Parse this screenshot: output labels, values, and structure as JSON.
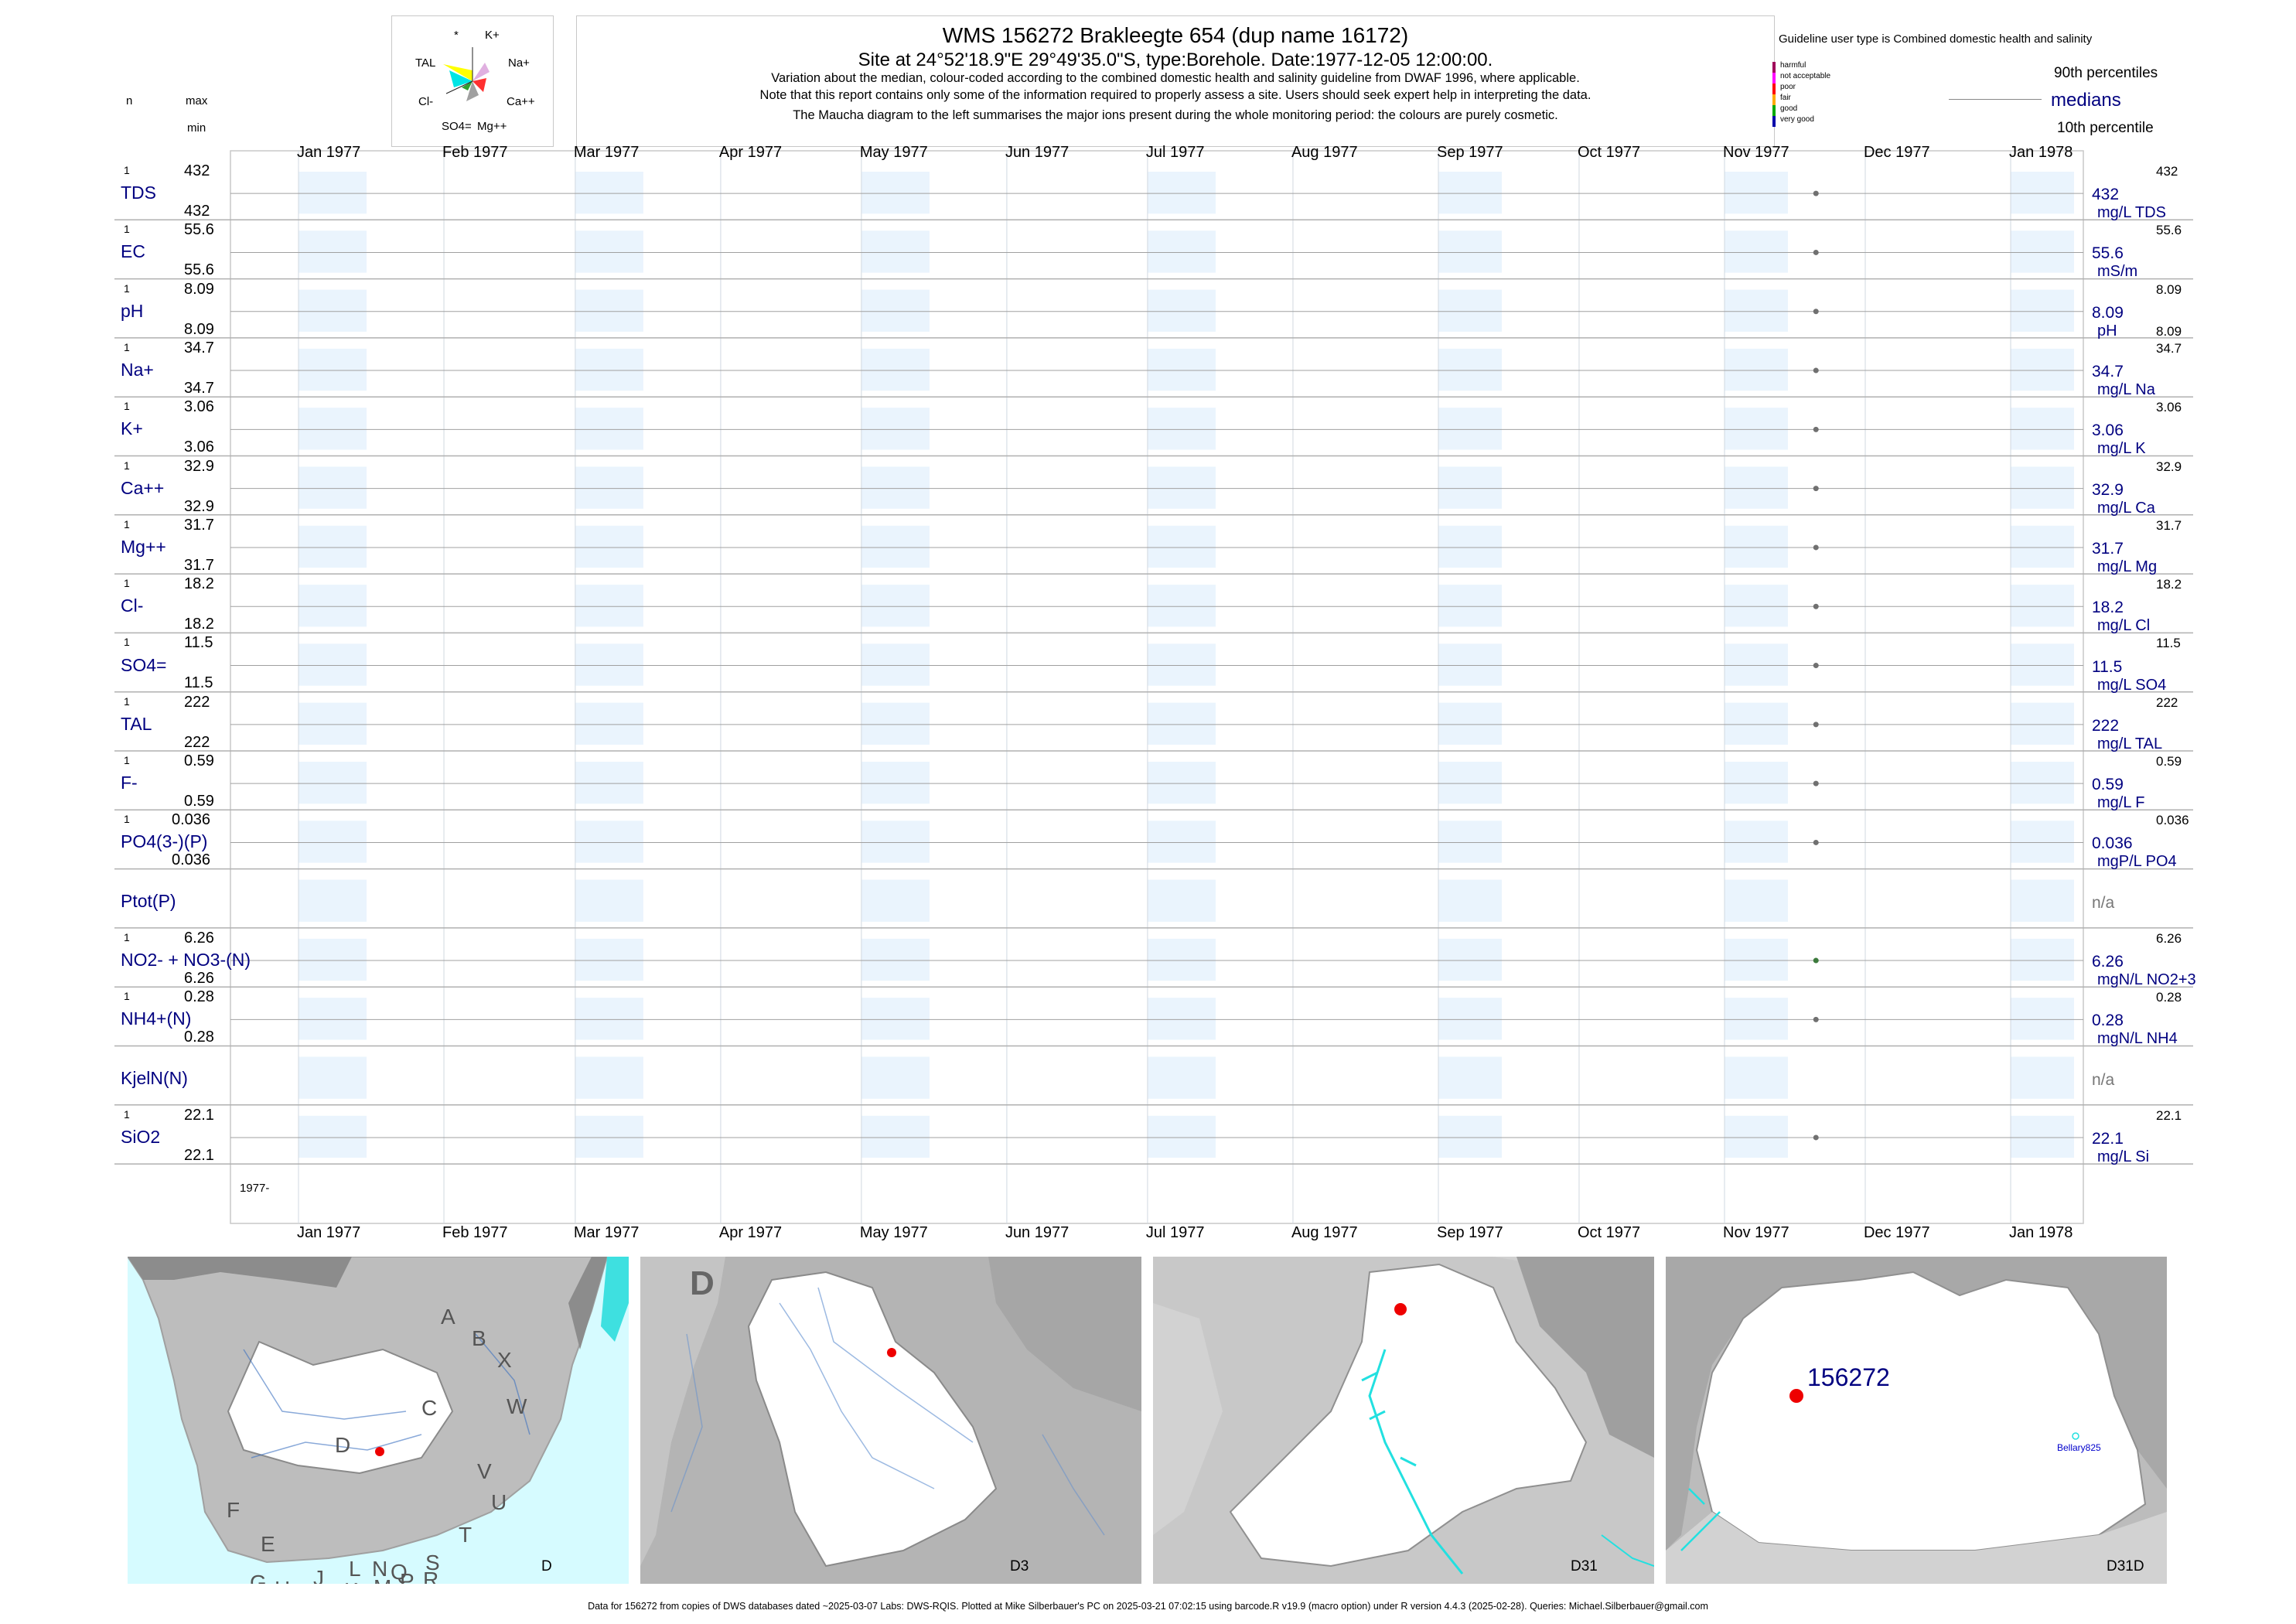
{
  "header": {
    "title": "WMS 156272  Brakleegte 654 (dup name 16172)",
    "site": "Site at 24°52'18.9\"E 29°49'35.0\"S, type:Borehole. Date:1977-12-05 12:00:00.",
    "note1": "Variation about the median,  colour-coded according to the combined domestic health and salinity guideline from DWAF 1996, where applicable.",
    "note2": "Note that this report contains only some of the information required to properly assess a site. Users should seek expert help in interpreting the data.",
    "note3": "The Maucha diagram to the left summarises the major ions present during the whole monitoring period: the colours are purely cosmetic."
  },
  "maucha": {
    "labels": [
      "*",
      "K+",
      "TAL",
      "Na+",
      "Cl-",
      "Ca++",
      "SO4=",
      "Mg++"
    ]
  },
  "legend": {
    "guideline_title": "Guideline user type is Combined domestic health and salinity",
    "categories": [
      "harmful",
      "not acceptable",
      "poor",
      "fair",
      "good",
      "very good"
    ],
    "category_colors": [
      "#a0005a",
      "#ff00ff",
      "#ff0000",
      "#ffaa00",
      "#00aa00",
      "#0000aa"
    ],
    "p90": "90th percentiles",
    "medians": "medians",
    "p10": "10th percentile"
  },
  "columns": {
    "n": "n",
    "max": "max",
    "min": "min"
  },
  "months": [
    "Jan 1977",
    "Feb 1977",
    "Mar 1977",
    "Apr 1977",
    "May 1977",
    "Jun 1977",
    "Jul 1977",
    "Aug 1977",
    "Sep 1977",
    "Oct 1977",
    "Nov 1977",
    "Dec 1977",
    "Jan 1978"
  ],
  "year_label": "1977-",
  "chart_data": {
    "type": "scatter",
    "x_range": [
      "1977-01-01",
      "1978-01-31"
    ],
    "sample_date": "1977-12-05",
    "series": [
      {
        "label": "TDS",
        "n": "1",
        "max": "432",
        "min": "432",
        "median": "432",
        "unit": "mg/L TDS",
        "p90": "432",
        "p10": ""
      },
      {
        "label": "EC",
        "n": "1",
        "max": "55.6",
        "min": "55.6",
        "median": "55.6",
        "unit": "mS/m",
        "p90": "55.6",
        "p10": ""
      },
      {
        "label": "pH",
        "n": "1",
        "max": "8.09",
        "min": "8.09",
        "median": "8.09",
        "unit": "pH",
        "p90": "8.09",
        "p10": "8.09"
      },
      {
        "label": "Na+",
        "n": "1",
        "max": "34.7",
        "min": "34.7",
        "median": "34.7",
        "unit": "mg/L Na",
        "p90": "34.7",
        "p10": ""
      },
      {
        "label": "K+",
        "n": "1",
        "max": "3.06",
        "min": "3.06",
        "median": "3.06",
        "unit": "mg/L K",
        "p90": "3.06",
        "p10": ""
      },
      {
        "label": "Ca++",
        "n": "1",
        "max": "32.9",
        "min": "32.9",
        "median": "32.9",
        "unit": "mg/L Ca",
        "p90": "32.9",
        "p10": ""
      },
      {
        "label": "Mg++",
        "n": "1",
        "max": "31.7",
        "min": "31.7",
        "median": "31.7",
        "unit": "mg/L Mg",
        "p90": "31.7",
        "p10": ""
      },
      {
        "label": "Cl-",
        "n": "1",
        "max": "18.2",
        "min": "18.2",
        "median": "18.2",
        "unit": "mg/L Cl",
        "p90": "18.2",
        "p10": ""
      },
      {
        "label": "SO4=",
        "n": "1",
        "max": "11.5",
        "min": "11.5",
        "median": "11.5",
        "unit": "mg/L SO4",
        "p90": "11.5",
        "p10": ""
      },
      {
        "label": "TAL",
        "n": "1",
        "max": "222",
        "min": "222",
        "median": "222",
        "unit": "mg/L TAL",
        "p90": "222",
        "p10": ""
      },
      {
        "label": "F-",
        "n": "1",
        "max": "0.59",
        "min": "0.59",
        "median": "0.59",
        "unit": "mg/L F",
        "p90": "0.59",
        "p10": ""
      },
      {
        "label": "PO4(3-)(P)",
        "n": "1",
        "max": "0.036",
        "min": "0.036",
        "median": "0.036",
        "unit": "mgP/L PO4",
        "p90": "0.036",
        "p10": ""
      },
      {
        "label": "Ptot(P)",
        "n": "",
        "max": "",
        "min": "",
        "median": "n/a",
        "unit": "",
        "p90": "",
        "p10": ""
      },
      {
        "label": "NO2- + NO3-(N)",
        "n": "1",
        "max": "6.26",
        "min": "6.26",
        "median": "6.26",
        "unit": "mgN/L NO2+3",
        "p90": "6.26",
        "p10": ""
      },
      {
        "label": "NH4+(N)",
        "n": "1",
        "max": "0.28",
        "min": "0.28",
        "median": "0.28",
        "unit": "mgN/L NH4",
        "p90": "0.28",
        "p10": ""
      },
      {
        "label": "KjelN(N)",
        "n": "",
        "max": "",
        "min": "",
        "median": "n/a",
        "unit": "",
        "p90": "",
        "p10": ""
      },
      {
        "label": "SiO2",
        "n": "1",
        "max": "22.1",
        "min": "22.1",
        "median": "22.1",
        "unit": "mg/L Si",
        "p90": "22.1",
        "p10": ""
      }
    ],
    "marker_colors": [
      "#707070",
      "#707070",
      "#707070",
      "#707070",
      "#707070",
      "#707070",
      "#707070",
      "#707070",
      "#707070",
      "#707070",
      "#707070",
      "#707070",
      "#707070",
      "#3c7a3c",
      "#707070",
      "#707070",
      "#707070"
    ]
  },
  "maps": {
    "d_letters": [
      "A",
      "B",
      "X",
      "C",
      "W",
      "D",
      "V",
      "U",
      "T",
      "F",
      "E",
      "S",
      "R",
      "Q",
      "N",
      "L",
      "J",
      "G",
      "H",
      "K",
      "M",
      "P"
    ],
    "panel1_label": "D",
    "panel2_label": "D3",
    "panel2_big": "D",
    "panel3_label": "D31",
    "panel4_label": "D31D",
    "site_label": "156272",
    "nearby_label": "Bellary825"
  },
  "footer": "Data for 156272 from copies of DWS databases dated ~2025-03-07 Labs: DWS-RQIS. Plotted at Mike Silberbauer's PC on 2025-03-21 07:02:15 using barcode.R v19.9 (macro option) under R version 4.4.3 (2025-02-28). Queries: Michael.Silberbauer@gmail.com"
}
